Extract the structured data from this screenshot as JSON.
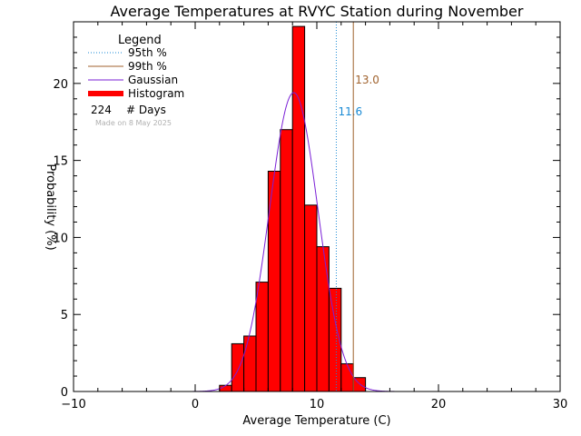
{
  "chart_data": {
    "type": "bar",
    "title": "Average Temperatures at RVYC Station during November",
    "xlabel": "Average Temperature (C)",
    "ylabel": "Probability (%)",
    "xlim": [
      -10,
      30
    ],
    "ylim": [
      0,
      24
    ],
    "xticks": [
      -10,
      0,
      10,
      20,
      30
    ],
    "yticks": [
      0,
      5,
      10,
      15,
      20
    ],
    "bin_width": 1,
    "bins": [
      {
        "x0": 2,
        "value": 0.4
      },
      {
        "x0": 3,
        "value": 3.1
      },
      {
        "x0": 4,
        "value": 3.6
      },
      {
        "x0": 5,
        "value": 7.1
      },
      {
        "x0": 6,
        "value": 14.3
      },
      {
        "x0": 7,
        "value": 17.0
      },
      {
        "x0": 8,
        "value": 23.7
      },
      {
        "x0": 9,
        "value": 12.1
      },
      {
        "x0": 10,
        "value": 9.4
      },
      {
        "x0": 11,
        "value": 6.7
      },
      {
        "x0": 12,
        "value": 1.8
      },
      {
        "x0": 13,
        "value": 0.9
      }
    ],
    "gaussian": {
      "mean": 8.1,
      "peak": 19.4,
      "sigma": 2.0
    },
    "percentiles": [
      {
        "name": "95th %",
        "value": 11.6,
        "label": "11.6",
        "color": "#1a8ad4",
        "style": "dotted"
      },
      {
        "name": "99th %",
        "value": 13.0,
        "label": "13.0",
        "color": "#a0622d",
        "style": "solid"
      }
    ],
    "legend": {
      "title": "Legend",
      "placement": "top-left",
      "items": [
        {
          "label": "95th %",
          "color": "#1a8ad4",
          "style": "dotted"
        },
        {
          "label": "99th %",
          "color": "#a0622d",
          "style": "solid"
        },
        {
          "label": "Gaussian",
          "color": "#7a1fd6",
          "style": "thin"
        },
        {
          "label": "Histogram",
          "color": "#ff0000",
          "style": "thick"
        }
      ],
      "days_count": "224",
      "days_label": "# Days"
    },
    "made_on": "Made on 8 May 2025",
    "colors": {
      "histogram_fill": "#ff0000",
      "histogram_edge": "#000000",
      "gaussian": "#7a1fd6"
    }
  }
}
